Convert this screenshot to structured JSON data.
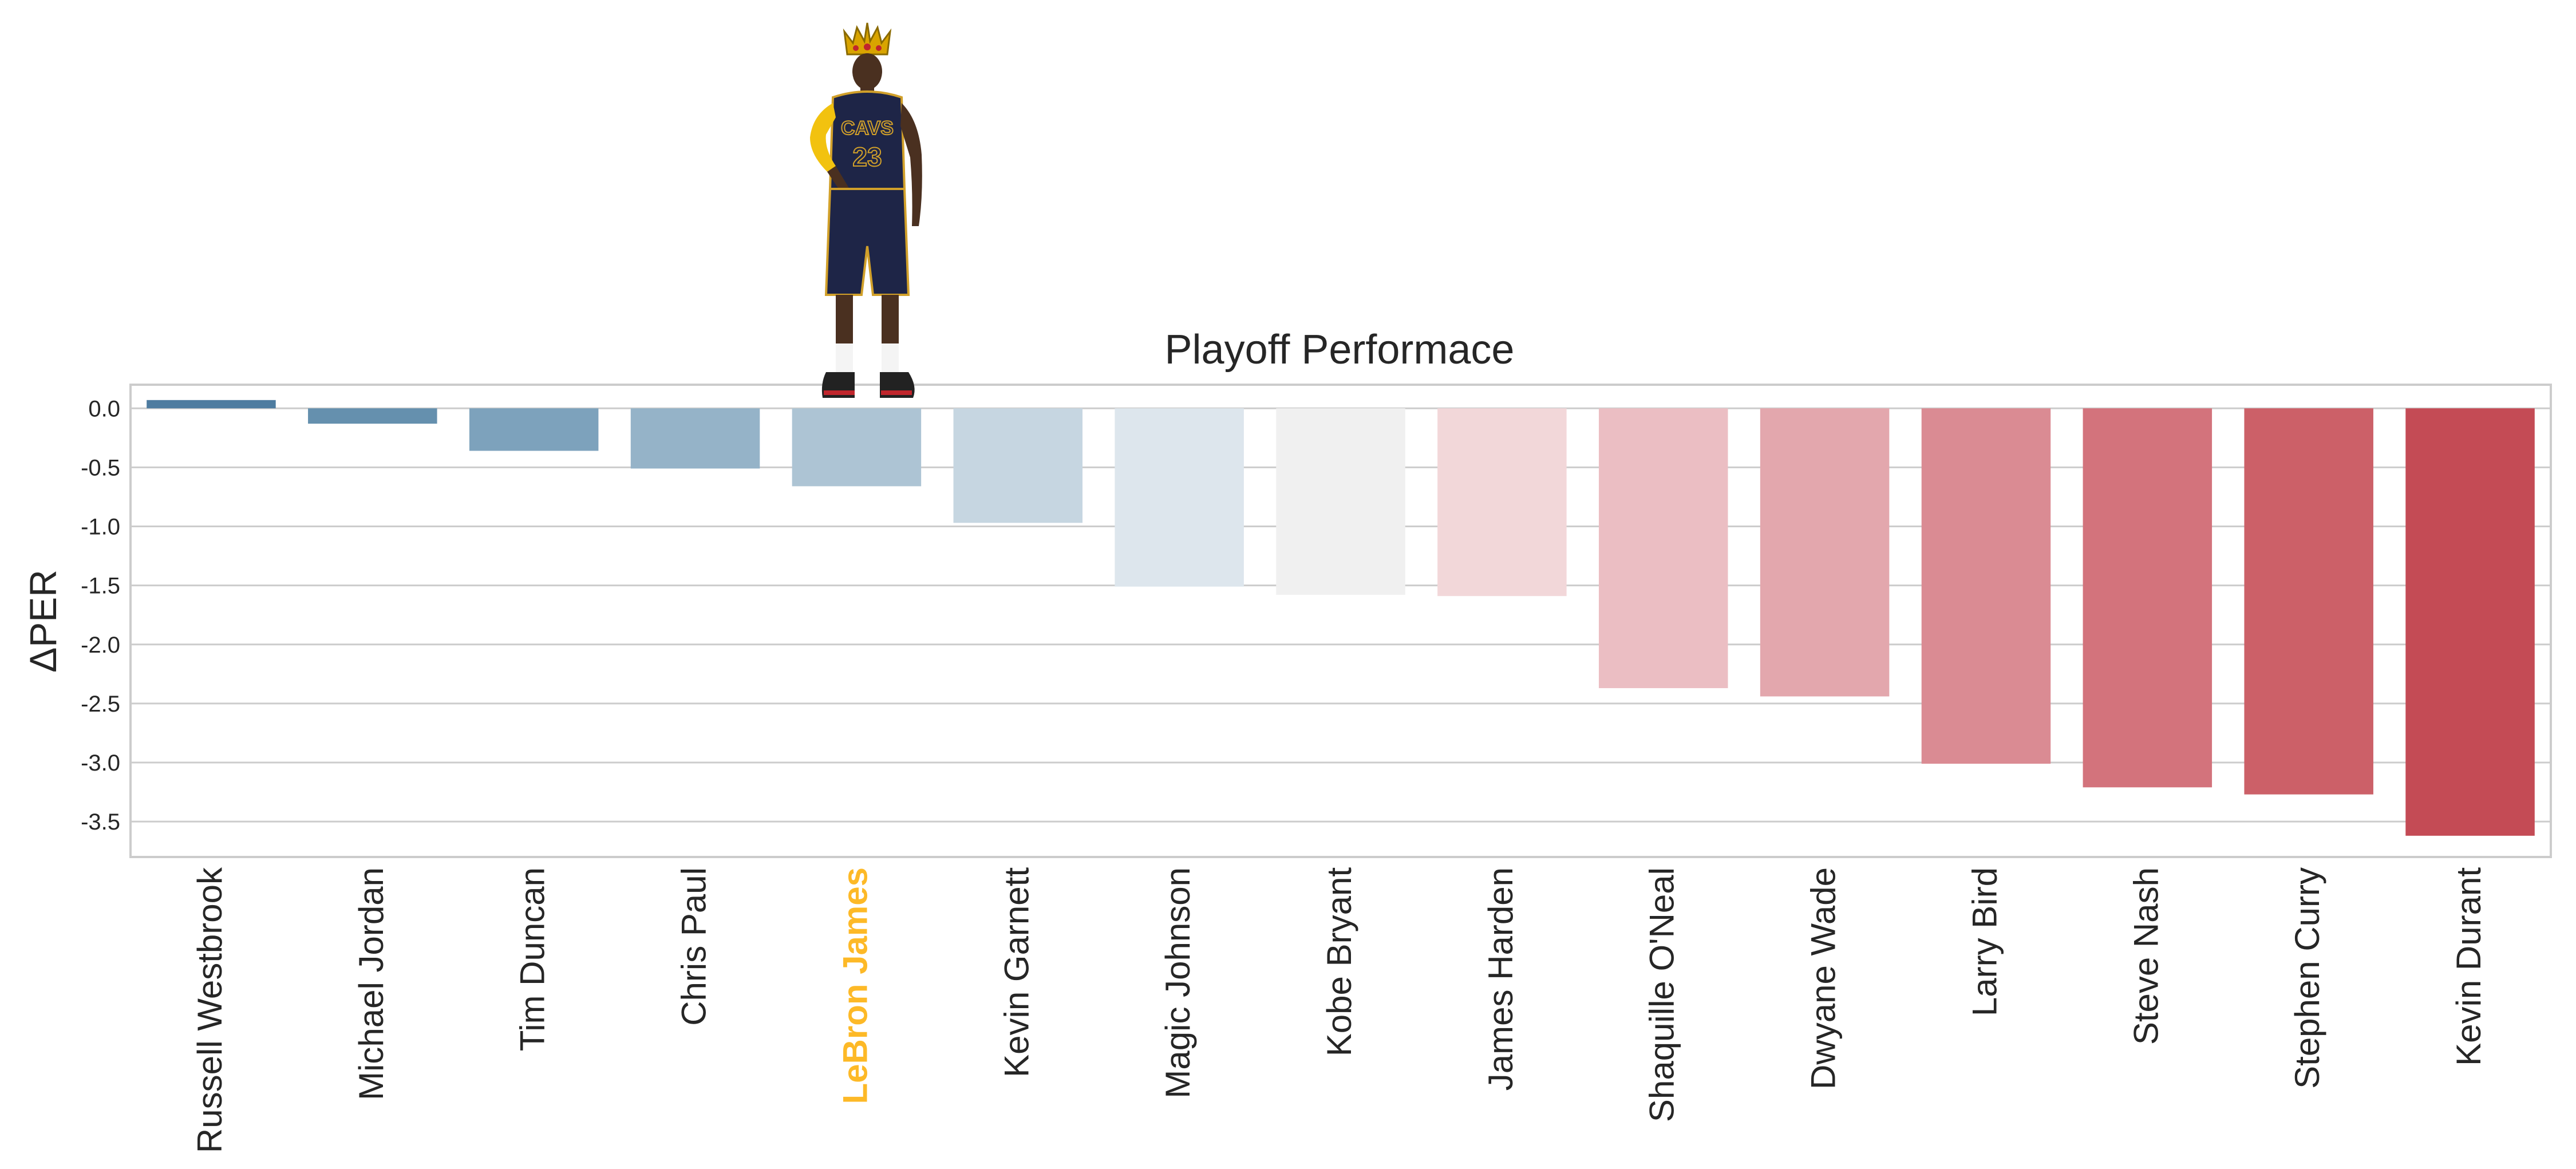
{
  "chart_data": {
    "type": "bar",
    "title": "Playoff Performace",
    "xlabel": "",
    "ylabel": "ΔPER",
    "categories": [
      "Russell Westbrook",
      "Michael Jordan",
      "Tim Duncan",
      "Chris Paul",
      "LeBron James",
      "Kevin Garnett",
      "Magic Johnson",
      "Kobe Bryant",
      "James Harden",
      "Shaquille O'Neal",
      "Dwyane Wade",
      "Larry Bird",
      "Steve Nash",
      "Stephen Curry",
      "Kevin Durant"
    ],
    "values": [
      0.07,
      -0.13,
      -0.36,
      -0.51,
      -0.66,
      -0.97,
      -1.51,
      -1.58,
      -1.59,
      -2.37,
      -2.44,
      -3.01,
      -3.21,
      -3.27,
      -3.62
    ],
    "bar_colors": [
      "#4e7ca0",
      "#6590ae",
      "#7da2bc",
      "#95b3c8",
      "#adc4d4",
      "#c6d6e1",
      "#dde6ed",
      "#f0f0f0",
      "#f2d7d9",
      "#ebbec3",
      "#e3a7ad",
      "#da8b93",
      "#d3737c",
      "#cc6068",
      "#c44b55"
    ],
    "highlight_category": "LeBron James",
    "highlight_color": "#fdb927",
    "ylim": [
      -3.8,
      0.2
    ],
    "yticks": [
      0.0,
      -0.5,
      -1.0,
      -1.5,
      -2.0,
      -2.5,
      -3.0,
      -3.5
    ],
    "ytick_labels": [
      "0.0",
      "-0.5",
      "-1.0",
      "-1.5",
      "-2.0",
      "-2.5",
      "-3.0",
      "-3.5"
    ],
    "grid": true,
    "legend": "none",
    "annotation_icon": "crowned-player-icon"
  }
}
